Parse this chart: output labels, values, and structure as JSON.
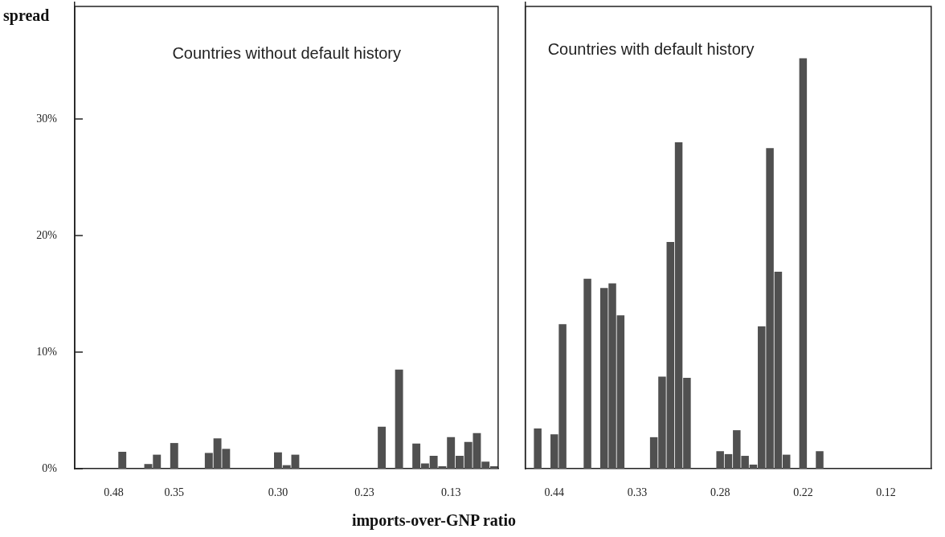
{
  "chart_data": [
    {
      "type": "bar",
      "title": "Countries without default history",
      "ylabel": "spread",
      "xlabel": "imports-over-GNP ratio",
      "categories": [
        null,
        null,
        null,
        null,
        "0.48",
        null,
        null,
        null,
        null,
        null,
        null,
        "0.35",
        null,
        null,
        null,
        null,
        null,
        null,
        null,
        null,
        null,
        null,
        null,
        "0.30",
        null,
        null,
        null,
        null,
        null,
        null,
        null,
        null,
        null,
        "0.23",
        null,
        null,
        null,
        null,
        null,
        null,
        null,
        null,
        null,
        "0.13",
        null,
        null,
        null,
        null,
        null
      ],
      "values": [
        null,
        null,
        null,
        null,
        null,
        1.45,
        null,
        null,
        0.4,
        1.2,
        null,
        2.2,
        null,
        null,
        null,
        1.35,
        2.6,
        1.7,
        null,
        null,
        null,
        null,
        null,
        1.4,
        0.3,
        1.2,
        null,
        null,
        null,
        null,
        null,
        null,
        null,
        null,
        null,
        3.6,
        null,
        8.5,
        null,
        2.15,
        0.45,
        1.1,
        0.2,
        2.7,
        1.1,
        2.3,
        3.05,
        0.6,
        0.2
      ],
      "color": "#505050",
      "ylim": [
        0,
        40
      ],
      "yticks": [
        {
          "value": 0,
          "label": "0%"
        },
        {
          "value": 10,
          "label": "10%"
        },
        {
          "value": 20,
          "label": "20%"
        },
        {
          "value": 30,
          "label": "30%"
        }
      ],
      "grid": false,
      "legend": false
    },
    {
      "type": "bar",
      "title": "Countries with default history",
      "categories": [
        null,
        null,
        null,
        "0.44",
        null,
        null,
        null,
        null,
        null,
        null,
        null,
        null,
        null,
        "0.33",
        null,
        null,
        null,
        null,
        null,
        null,
        null,
        null,
        null,
        "0.28",
        null,
        null,
        null,
        null,
        null,
        null,
        null,
        null,
        null,
        "0.22",
        null,
        null,
        null,
        null,
        null,
        null,
        null,
        null,
        null,
        "0.12",
        null,
        null,
        null,
        null,
        null
      ],
      "values": [
        null,
        3.45,
        null,
        2.95,
        12.4,
        null,
        null,
        16.3,
        null,
        15.5,
        15.9,
        13.15,
        null,
        null,
        null,
        2.7,
        7.9,
        19.45,
        28.0,
        7.8,
        null,
        null,
        null,
        1.5,
        1.25,
        3.3,
        1.1,
        0.35,
        12.2,
        27.5,
        16.9,
        1.2,
        null,
        35.2,
        null,
        1.5,
        null,
        null,
        null,
        null,
        null,
        null,
        null,
        null,
        null,
        null,
        null,
        null,
        null
      ],
      "color": "#505050",
      "ylim": [
        0,
        40
      ],
      "tick_labels": "x",
      "grid": false,
      "legend": false
    }
  ]
}
